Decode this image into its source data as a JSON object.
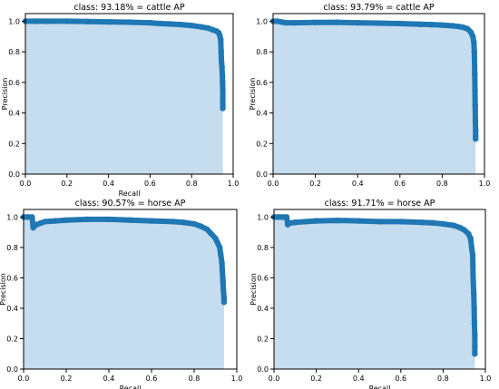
{
  "colors": {
    "line": "#1f77b4",
    "fill": "#c6dcef",
    "axes": "#000000"
  },
  "chart_data": [
    {
      "type": "area",
      "title": "class: 93.18% = cattle AP",
      "xlabel": "Recall",
      "ylabel": "Precision",
      "xlim": [
        0,
        1
      ],
      "ylim": [
        0,
        1.05
      ],
      "xticks": [
        "0.0",
        "0.2",
        "0.4",
        "0.6",
        "0.8",
        "1.0"
      ],
      "yticks": [
        "0.0",
        "0.2",
        "0.4",
        "0.6",
        "0.8",
        "1.0"
      ],
      "grid": false,
      "series": [
        {
          "x": [
            0.0,
            0.05,
            0.1,
            0.2,
            0.3,
            0.4,
            0.5,
            0.6,
            0.65,
            0.7,
            0.75,
            0.8,
            0.85,
            0.88,
            0.9,
            0.92,
            0.93,
            0.935,
            0.94,
            0.942,
            0.944,
            0.946,
            0.948,
            0.949,
            0.95,
            0.95,
            0.95,
            0.95
          ],
          "y": [
            1.0,
            1.0,
            1.0,
            1.0,
            0.998,
            0.996,
            0.994,
            0.99,
            0.985,
            0.982,
            0.978,
            0.972,
            0.962,
            0.955,
            0.945,
            0.935,
            0.925,
            0.91,
            0.88,
            0.8,
            0.73,
            0.7,
            0.64,
            0.6,
            0.55,
            0.5,
            0.46,
            0.43
          ]
        }
      ]
    },
    {
      "type": "area",
      "title": "class: 93.79% = cattle AP",
      "xlabel": "",
      "ylabel": "Precision",
      "xlim": [
        0,
        1
      ],
      "ylim": [
        0,
        1.05
      ],
      "xticks": [
        "0.0",
        "0.2",
        "0.4",
        "0.6",
        "0.8",
        "1.0"
      ],
      "yticks": [
        "0.0",
        "0.2",
        "0.4",
        "0.6",
        "0.8",
        "1.0"
      ],
      "grid": false,
      "series": [
        {
          "x": [
            0.0,
            0.02,
            0.04,
            0.06,
            0.1,
            0.2,
            0.3,
            0.4,
            0.5,
            0.6,
            0.7,
            0.75,
            0.8,
            0.85,
            0.88,
            0.9,
            0.92,
            0.935,
            0.945,
            0.95,
            0.952,
            0.954,
            0.955,
            0.956,
            0.957,
            0.958,
            0.958,
            0.958
          ],
          "y": [
            1.0,
            1.0,
            0.995,
            0.99,
            0.99,
            0.992,
            0.993,
            0.99,
            0.988,
            0.985,
            0.98,
            0.978,
            0.975,
            0.97,
            0.965,
            0.96,
            0.95,
            0.93,
            0.9,
            0.86,
            0.8,
            0.65,
            0.55,
            0.45,
            0.35,
            0.28,
            0.25,
            0.23
          ]
        }
      ]
    },
    {
      "type": "area",
      "title": "class: 90.57% = horse AP",
      "xlabel": "Recall",
      "ylabel": "Precision",
      "xlim": [
        0,
        1
      ],
      "ylim": [
        0,
        1.05
      ],
      "xticks": [
        "0.0",
        "0.2",
        "0.4",
        "0.6",
        "0.8",
        "1.0"
      ],
      "yticks": [
        "0.0",
        "0.2",
        "0.4",
        "0.6",
        "0.8",
        "1.0"
      ],
      "grid": false,
      "series": [
        {
          "x": [
            0.0,
            0.02,
            0.04,
            0.045,
            0.05,
            0.06,
            0.08,
            0.1,
            0.15,
            0.2,
            0.3,
            0.4,
            0.5,
            0.6,
            0.7,
            0.75,
            0.8,
            0.83,
            0.86,
            0.88,
            0.9,
            0.91,
            0.92,
            0.925,
            0.93,
            0.932,
            0.935,
            0.937,
            0.94,
            0.94
          ],
          "y": [
            1.0,
            1.0,
            1.0,
            0.93,
            0.94,
            0.95,
            0.96,
            0.97,
            0.975,
            0.98,
            0.985,
            0.985,
            0.98,
            0.975,
            0.97,
            0.965,
            0.955,
            0.94,
            0.92,
            0.89,
            0.86,
            0.83,
            0.8,
            0.75,
            0.7,
            0.65,
            0.58,
            0.52,
            0.47,
            0.44
          ]
        }
      ]
    },
    {
      "type": "area",
      "title": "class: 91.71% = horse AP",
      "xlabel": "Recall",
      "ylabel": "Precision",
      "xlim": [
        0,
        1
      ],
      "ylim": [
        0,
        1.05
      ],
      "xticks": [
        "0.0",
        "0.2",
        "0.4",
        "0.6",
        "0.8",
        "1.0"
      ],
      "yticks": [
        "0.0",
        "0.2",
        "0.4",
        "0.6",
        "0.8",
        "1.0"
      ],
      "grid": false,
      "series": [
        {
          "x": [
            0.0,
            0.02,
            0.04,
            0.06,
            0.065,
            0.07,
            0.1,
            0.15,
            0.2,
            0.3,
            0.4,
            0.5,
            0.6,
            0.7,
            0.75,
            0.8,
            0.85,
            0.88,
            0.9,
            0.92,
            0.93,
            0.935,
            0.94,
            0.942,
            0.945,
            0.947,
            0.948,
            0.95,
            0.95,
            0.95
          ],
          "y": [
            1.0,
            1.0,
            1.0,
            1.0,
            0.95,
            0.96,
            0.965,
            0.97,
            0.975,
            0.978,
            0.975,
            0.97,
            0.97,
            0.965,
            0.962,
            0.955,
            0.945,
            0.93,
            0.915,
            0.89,
            0.86,
            0.8,
            0.75,
            0.6,
            0.5,
            0.4,
            0.3,
            0.22,
            0.15,
            0.1
          ]
        }
      ]
    }
  ]
}
